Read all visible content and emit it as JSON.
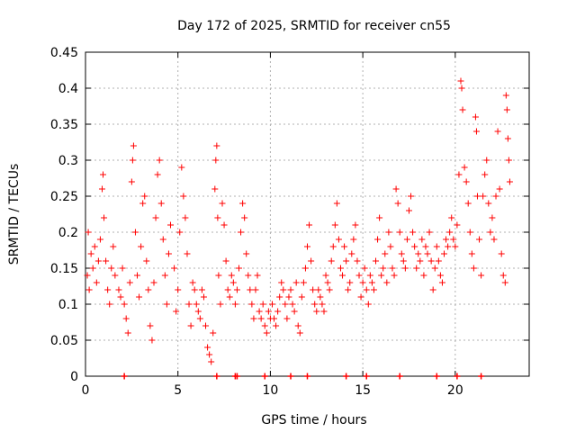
{
  "chart_data": {
    "type": "scatter",
    "title": "Day 172 of 2025, SRMTID for receiver cn55",
    "xlabel": "GPS time / hours",
    "ylabel": "SRMTID / TECUs",
    "xlim": [
      0,
      24
    ],
    "ylim": [
      0,
      0.45
    ],
    "x_ticks": [
      0,
      5,
      10,
      15,
      20
    ],
    "y_ticks": [
      0,
      0.05,
      0.1,
      0.15,
      0.2,
      0.25,
      0.3,
      0.35,
      0.4,
      0.45
    ],
    "x_tick_labels": [
      "0",
      "5",
      "10",
      "15",
      "20"
    ],
    "y_tick_labels": [
      "0",
      "0.05",
      "0.1",
      "0.15",
      "0.2",
      "0.25",
      "0.3",
      "0.35",
      "0.4",
      "0.45"
    ],
    "grid": true,
    "marker": "+",
    "color": "#ff0000",
    "series": [
      {
        "name": "SRMTID",
        "points": [
          [
            0.1,
            0.14
          ],
          [
            0.15,
            0.2
          ],
          [
            0.2,
            0.12
          ],
          [
            0.3,
            0.17
          ],
          [
            0.4,
            0.15
          ],
          [
            0.5,
            0.18
          ],
          [
            0.6,
            0.13
          ],
          [
            0.7,
            0.16
          ],
          [
            0.8,
            0.19
          ],
          [
            0.9,
            0.26
          ],
          [
            0.95,
            0.28
          ],
          [
            1.0,
            0.22
          ],
          [
            1.1,
            0.16
          ],
          [
            1.2,
            0.12
          ],
          [
            1.3,
            0.1
          ],
          [
            1.4,
            0.15
          ],
          [
            1.5,
            0.18
          ],
          [
            1.6,
            0.14
          ],
          [
            1.8,
            0.12
          ],
          [
            1.9,
            0.11
          ],
          [
            2.0,
            0.15
          ],
          [
            2.1,
            0.1
          ],
          [
            2.2,
            0.08
          ],
          [
            2.3,
            0.06
          ],
          [
            2.4,
            0.13
          ],
          [
            2.5,
            0.27
          ],
          [
            2.55,
            0.3
          ],
          [
            2.6,
            0.32
          ],
          [
            2.7,
            0.2
          ],
          [
            2.8,
            0.14
          ],
          [
            2.9,
            0.11
          ],
          [
            3.0,
            0.18
          ],
          [
            3.1,
            0.24
          ],
          [
            3.2,
            0.25
          ],
          [
            3.3,
            0.16
          ],
          [
            3.4,
            0.12
          ],
          [
            3.5,
            0.07
          ],
          [
            3.6,
            0.05
          ],
          [
            3.7,
            0.13
          ],
          [
            3.8,
            0.22
          ],
          [
            3.9,
            0.28
          ],
          [
            4.0,
            0.3
          ],
          [
            4.1,
            0.24
          ],
          [
            4.2,
            0.19
          ],
          [
            4.3,
            0.14
          ],
          [
            4.4,
            0.1
          ],
          [
            4.5,
            0.17
          ],
          [
            4.6,
            0.21
          ],
          [
            4.8,
            0.15
          ],
          [
            4.9,
            0.09
          ],
          [
            5.0,
            0.12
          ],
          [
            5.1,
            0.2
          ],
          [
            5.2,
            0.29
          ],
          [
            5.3,
            0.25
          ],
          [
            5.4,
            0.22
          ],
          [
            5.5,
            0.17
          ],
          [
            5.6,
            0.1
          ],
          [
            5.7,
            0.07
          ],
          [
            5.8,
            0.13
          ],
          [
            5.9,
            0.12
          ],
          [
            6.0,
            0.1
          ],
          [
            6.1,
            0.09
          ],
          [
            6.2,
            0.08
          ],
          [
            6.3,
            0.12
          ],
          [
            6.4,
            0.11
          ],
          [
            6.5,
            0.07
          ],
          [
            6.6,
            0.04
          ],
          [
            6.7,
            0.03
          ],
          [
            6.8,
            0.02
          ],
          [
            6.9,
            0.06
          ],
          [
            7.0,
            0.26
          ],
          [
            7.05,
            0.3
          ],
          [
            7.1,
            0.32
          ],
          [
            7.15,
            0.22
          ],
          [
            7.2,
            0.14
          ],
          [
            7.3,
            0.1
          ],
          [
            7.4,
            0.24
          ],
          [
            7.5,
            0.21
          ],
          [
            7.6,
            0.16
          ],
          [
            7.7,
            0.12
          ],
          [
            7.8,
            0.11
          ],
          [
            7.9,
            0.14
          ],
          [
            8.0,
            0.13
          ],
          [
            8.1,
            0.1
          ],
          [
            8.2,
            0.12
          ],
          [
            8.3,
            0.15
          ],
          [
            8.4,
            0.2
          ],
          [
            8.5,
            0.24
          ],
          [
            8.6,
            0.22
          ],
          [
            8.7,
            0.17
          ],
          [
            8.8,
            0.14
          ],
          [
            8.9,
            0.12
          ],
          [
            9.0,
            0.1
          ],
          [
            9.1,
            0.08
          ],
          [
            9.2,
            0.12
          ],
          [
            9.3,
            0.14
          ],
          [
            9.4,
            0.09
          ],
          [
            9.5,
            0.08
          ],
          [
            9.6,
            0.1
          ],
          [
            9.7,
            0.07
          ],
          [
            9.8,
            0.06
          ],
          [
            9.9,
            0.09
          ],
          [
            10.0,
            0.08
          ],
          [
            10.1,
            0.1
          ],
          [
            10.2,
            0.08
          ],
          [
            10.3,
            0.07
          ],
          [
            10.4,
            0.09
          ],
          [
            10.5,
            0.11
          ],
          [
            10.6,
            0.13
          ],
          [
            10.7,
            0.12
          ],
          [
            10.8,
            0.1
          ],
          [
            10.9,
            0.08
          ],
          [
            11.0,
            0.11
          ],
          [
            11.1,
            0.12
          ],
          [
            11.2,
            0.1
          ],
          [
            11.3,
            0.09
          ],
          [
            11.4,
            0.13
          ],
          [
            11.5,
            0.07
          ],
          [
            11.6,
            0.06
          ],
          [
            11.7,
            0.11
          ],
          [
            11.8,
            0.13
          ],
          [
            11.9,
            0.15
          ],
          [
            12.0,
            0.18
          ],
          [
            12.1,
            0.21
          ],
          [
            12.2,
            0.16
          ],
          [
            12.3,
            0.12
          ],
          [
            12.4,
            0.1
          ],
          [
            12.5,
            0.09
          ],
          [
            12.6,
            0.12
          ],
          [
            12.7,
            0.11
          ],
          [
            12.8,
            0.1
          ],
          [
            12.9,
            0.09
          ],
          [
            13.0,
            0.14
          ],
          [
            13.1,
            0.13
          ],
          [
            13.2,
            0.12
          ],
          [
            13.3,
            0.16
          ],
          [
            13.4,
            0.18
          ],
          [
            13.5,
            0.21
          ],
          [
            13.6,
            0.24
          ],
          [
            13.7,
            0.19
          ],
          [
            13.8,
            0.15
          ],
          [
            13.9,
            0.14
          ],
          [
            14.0,
            0.18
          ],
          [
            14.1,
            0.16
          ],
          [
            14.2,
            0.12
          ],
          [
            14.3,
            0.13
          ],
          [
            14.4,
            0.17
          ],
          [
            14.5,
            0.19
          ],
          [
            14.6,
            0.21
          ],
          [
            14.7,
            0.16
          ],
          [
            14.8,
            0.14
          ],
          [
            14.9,
            0.11
          ],
          [
            15.0,
            0.13
          ],
          [
            15.1,
            0.15
          ],
          [
            15.2,
            0.12
          ],
          [
            15.3,
            0.1
          ],
          [
            15.4,
            0.14
          ],
          [
            15.5,
            0.13
          ],
          [
            15.6,
            0.12
          ],
          [
            15.7,
            0.16
          ],
          [
            15.8,
            0.19
          ],
          [
            15.9,
            0.22
          ],
          [
            16.0,
            0.14
          ],
          [
            16.1,
            0.15
          ],
          [
            16.2,
            0.17
          ],
          [
            16.3,
            0.13
          ],
          [
            16.4,
            0.2
          ],
          [
            16.5,
            0.18
          ],
          [
            16.6,
            0.15
          ],
          [
            16.7,
            0.14
          ],
          [
            16.8,
            0.26
          ],
          [
            16.9,
            0.24
          ],
          [
            17.0,
            0.2
          ],
          [
            17.1,
            0.17
          ],
          [
            17.2,
            0.16
          ],
          [
            17.3,
            0.15
          ],
          [
            17.4,
            0.19
          ],
          [
            17.5,
            0.23
          ],
          [
            17.6,
            0.25
          ],
          [
            17.7,
            0.2
          ],
          [
            17.8,
            0.18
          ],
          [
            17.9,
            0.15
          ],
          [
            18.0,
            0.17
          ],
          [
            18.1,
            0.16
          ],
          [
            18.2,
            0.19
          ],
          [
            18.3,
            0.14
          ],
          [
            18.4,
            0.18
          ],
          [
            18.5,
            0.17
          ],
          [
            18.6,
            0.2
          ],
          [
            18.7,
            0.16
          ],
          [
            18.8,
            0.12
          ],
          [
            18.9,
            0.15
          ],
          [
            19.0,
            0.18
          ],
          [
            19.1,
            0.16
          ],
          [
            19.2,
            0.14
          ],
          [
            19.3,
            0.13
          ],
          [
            19.4,
            0.17
          ],
          [
            19.5,
            0.19
          ],
          [
            19.6,
            0.18
          ],
          [
            19.7,
            0.2
          ],
          [
            19.8,
            0.22
          ],
          [
            19.9,
            0.19
          ],
          [
            20.0,
            0.18
          ],
          [
            20.1,
            0.21
          ],
          [
            20.2,
            0.28
          ],
          [
            20.3,
            0.41
          ],
          [
            20.35,
            0.4
          ],
          [
            20.4,
            0.37
          ],
          [
            20.5,
            0.29
          ],
          [
            20.6,
            0.27
          ],
          [
            20.7,
            0.24
          ],
          [
            20.8,
            0.2
          ],
          [
            20.9,
            0.17
          ],
          [
            21.0,
            0.15
          ],
          [
            21.1,
            0.36
          ],
          [
            21.15,
            0.34
          ],
          [
            21.2,
            0.25
          ],
          [
            21.3,
            0.19
          ],
          [
            21.4,
            0.14
          ],
          [
            21.5,
            0.25
          ],
          [
            21.6,
            0.28
          ],
          [
            21.7,
            0.3
          ],
          [
            21.8,
            0.24
          ],
          [
            21.9,
            0.2
          ],
          [
            22.0,
            0.22
          ],
          [
            22.1,
            0.19
          ],
          [
            22.2,
            0.25
          ],
          [
            22.3,
            0.34
          ],
          [
            22.4,
            0.26
          ],
          [
            22.5,
            0.17
          ],
          [
            22.6,
            0.14
          ],
          [
            22.7,
            0.13
          ],
          [
            22.75,
            0.39
          ],
          [
            22.8,
            0.37
          ],
          [
            22.85,
            0.33
          ],
          [
            22.9,
            0.3
          ],
          [
            22.95,
            0.27
          ]
        ]
      }
    ],
    "zero_markers_x": [
      2.1,
      7.1,
      8.1,
      8.2,
      9.7,
      11.1,
      12.0,
      14.1,
      15.2,
      17.0,
      19.0,
      20.1,
      21.4
    ]
  }
}
